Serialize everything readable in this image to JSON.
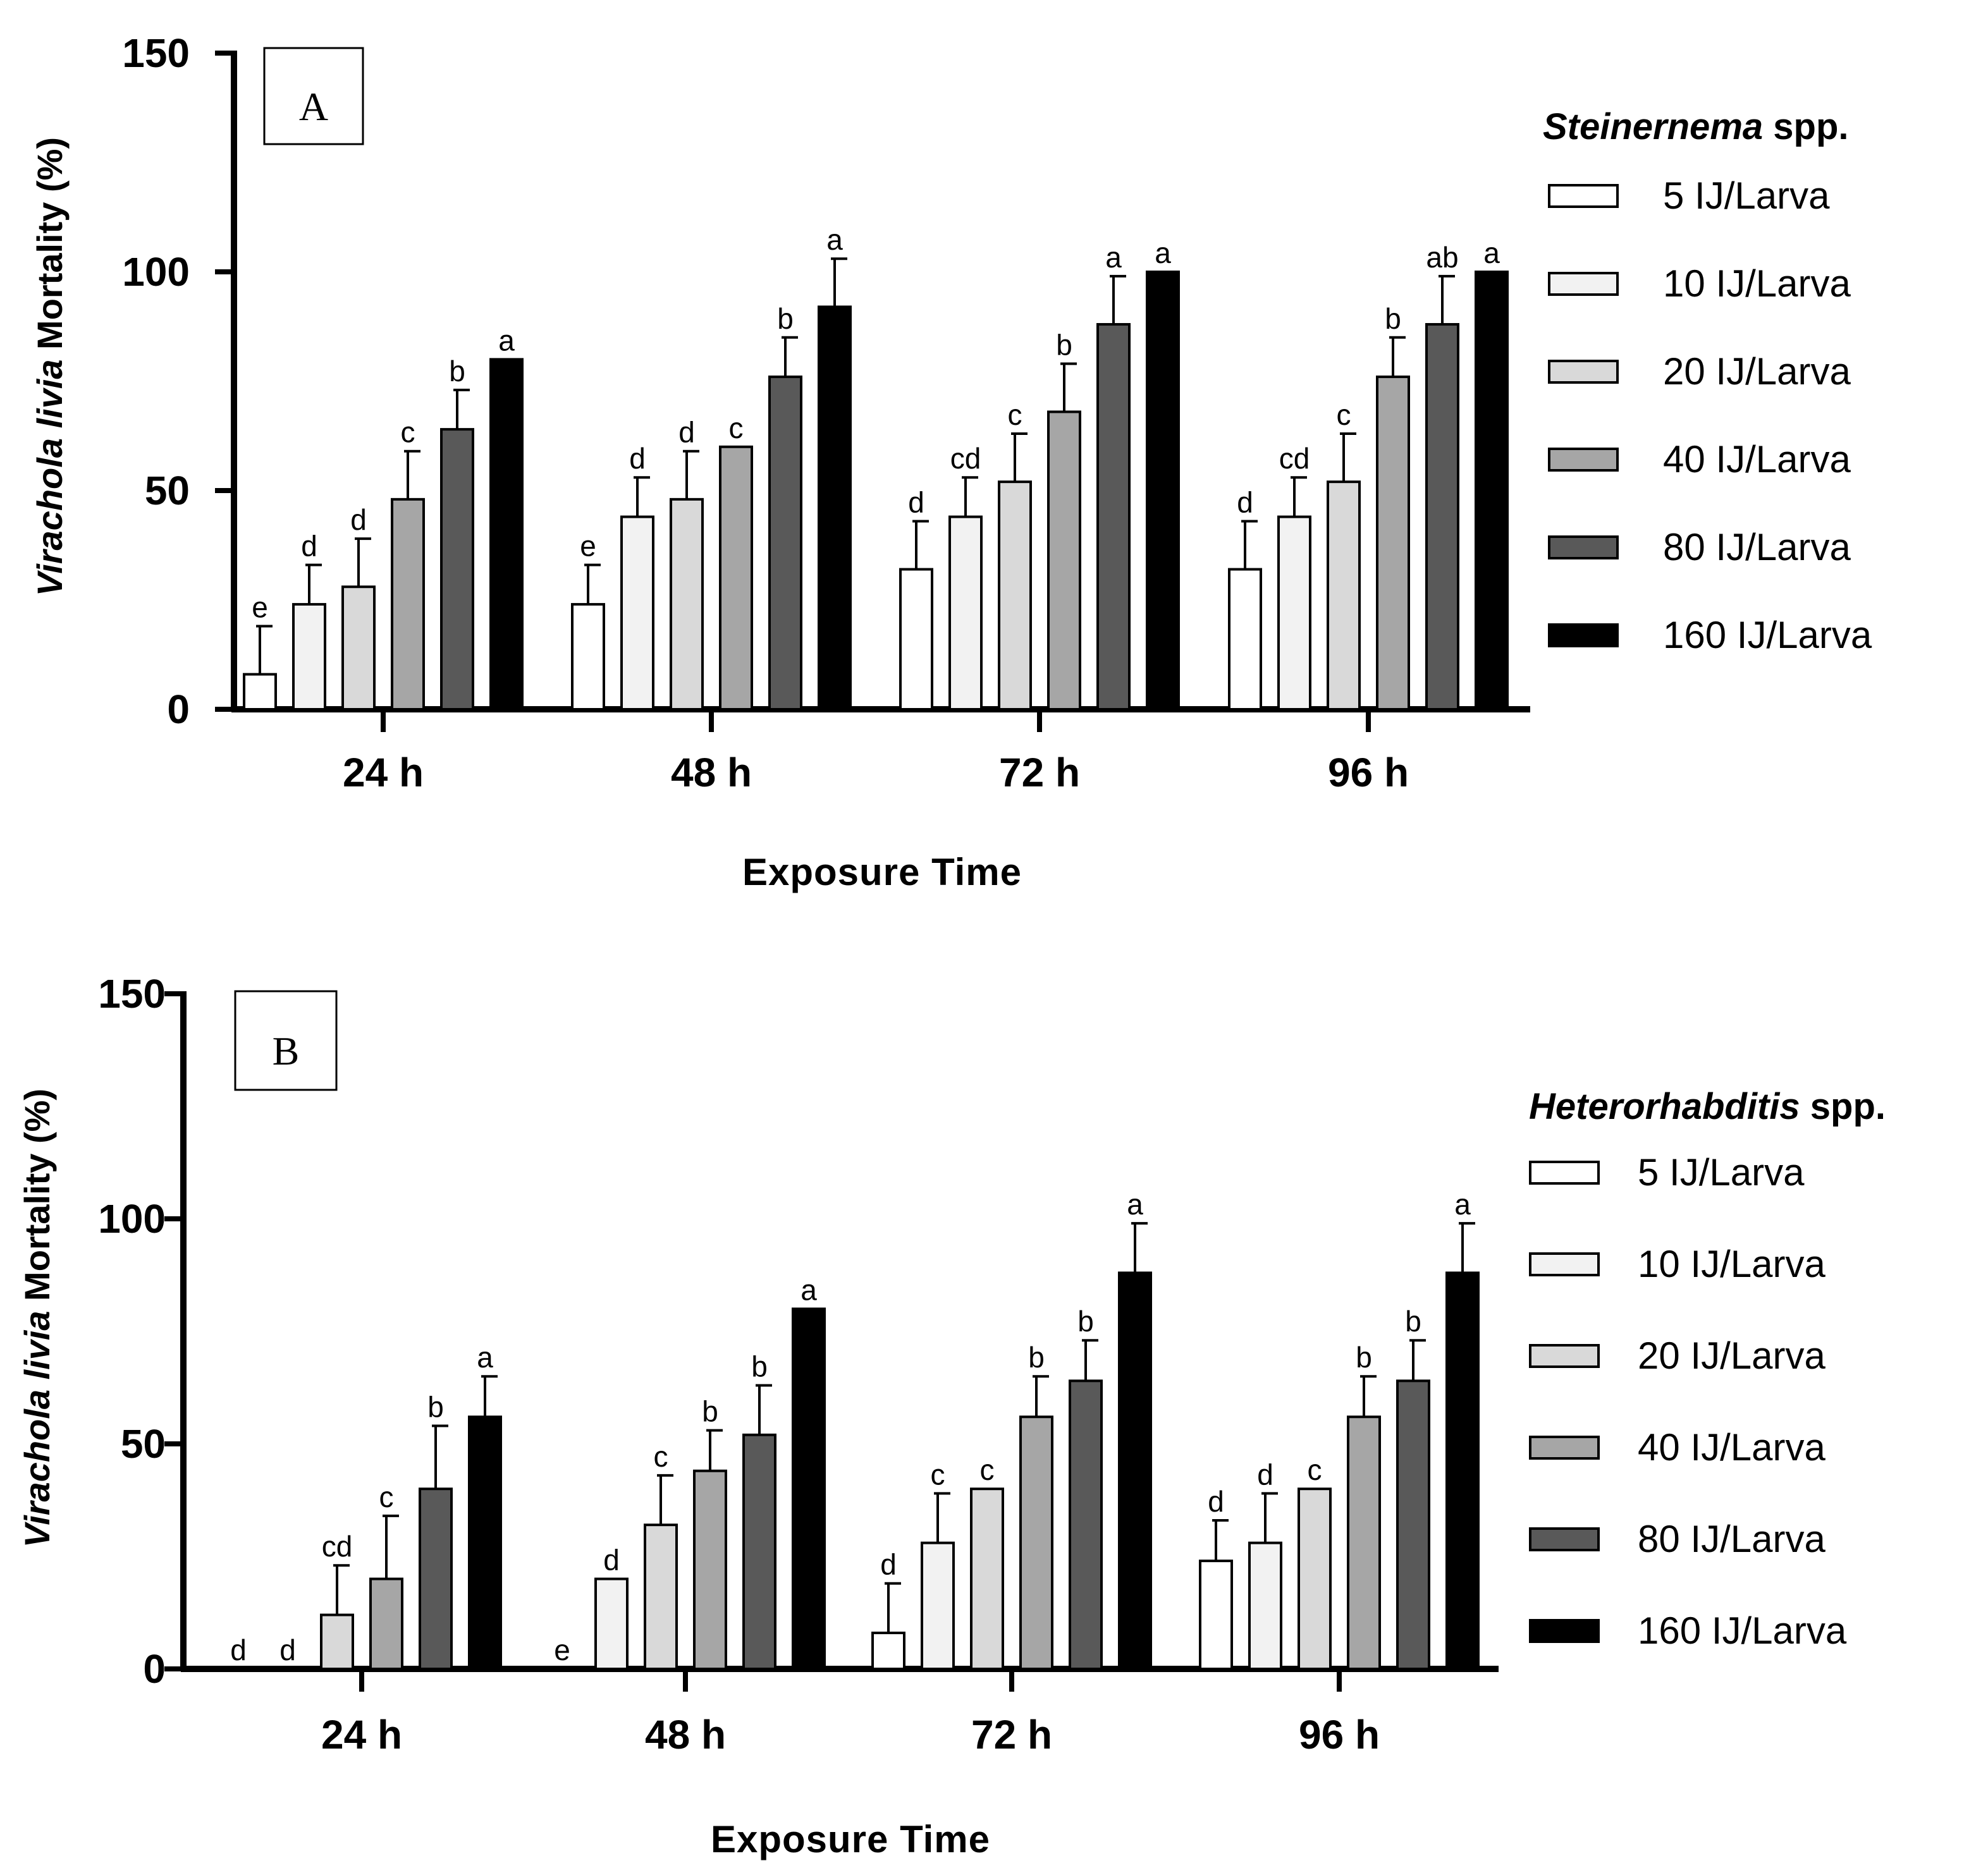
{
  "chart_data": [
    {
      "type": "bar",
      "panel_label": "A",
      "categories": [
        "24 h",
        "48 h",
        "72 h",
        "96 h"
      ],
      "xlabel": "Exposure Time",
      "ylabel_italic": "Virachola livia",
      "ylabel_rest": " Mortality (%)",
      "ylim": [
        0,
        150
      ],
      "yticks": [
        "0",
        "50",
        "100",
        "150"
      ],
      "legend_title_italic": "Steinernema",
      "legend_title_rest": " spp.",
      "series": [
        {
          "name": "5 IJ/Larva",
          "color": "#ffffff",
          "values": [
            8,
            24,
            32,
            32
          ],
          "errors": [
            11,
            9,
            11,
            11
          ],
          "letters": [
            "e",
            "e",
            "d",
            "d"
          ]
        },
        {
          "name": "10 IJ/Larva",
          "color": "#f2f2f2",
          "values": [
            24,
            44,
            44,
            44
          ],
          "errors": [
            9,
            9,
            9,
            9
          ],
          "letters": [
            "d",
            "d",
            "cd",
            "cd"
          ]
        },
        {
          "name": "20 IJ/Larva",
          "color": "#d9d9d9",
          "values": [
            28,
            48,
            52,
            52
          ],
          "errors": [
            11,
            11,
            11,
            11
          ],
          "letters": [
            "d",
            "d",
            "c",
            "c"
          ]
        },
        {
          "name": "40 IJ/Larva",
          "color": "#a6a6a6",
          "values": [
            48,
            60,
            68,
            76
          ],
          "errors": [
            11,
            0,
            11,
            9
          ],
          "letters": [
            "c",
            "c",
            "b",
            "b"
          ]
        },
        {
          "name": "80 IJ/Larva",
          "color": "#595959",
          "values": [
            64,
            76,
            88,
            88
          ],
          "errors": [
            9,
            9,
            11,
            11
          ],
          "letters": [
            "b",
            "b",
            "a",
            "ab"
          ]
        },
        {
          "name": "160 IJ/Larva",
          "color": "#000000",
          "values": [
            80,
            92,
            100,
            100
          ],
          "errors": [
            0,
            11,
            0,
            0
          ],
          "letters": [
            "a",
            "a",
            "a",
            "a"
          ]
        }
      ]
    },
    {
      "type": "bar",
      "panel_label": "B",
      "categories": [
        "24 h",
        "48 h",
        "72 h",
        "96 h"
      ],
      "xlabel": "Exposure Time",
      "ylabel_italic": "Virachola livia",
      "ylabel_rest": " Mortality (%)",
      "ylim": [
        0,
        150
      ],
      "yticks": [
        "0",
        "50",
        "100",
        "150"
      ],
      "legend_title_italic": "Heterorhabditis",
      "legend_title_rest": " spp.",
      "series": [
        {
          "name": "5 IJ/Larva",
          "color": "#ffffff",
          "values": [
            0,
            0,
            8,
            24
          ],
          "errors": [
            0,
            0,
            11,
            9
          ],
          "letters": [
            "d",
            "e",
            "d",
            "d"
          ]
        },
        {
          "name": "10 IJ/Larva",
          "color": "#f2f2f2",
          "values": [
            0,
            20,
            28,
            28
          ],
          "errors": [
            0,
            0,
            11,
            11
          ],
          "letters": [
            "d",
            "d",
            "c",
            "d"
          ]
        },
        {
          "name": "20 IJ/Larva",
          "color": "#d9d9d9",
          "values": [
            12,
            32,
            40,
            40
          ],
          "errors": [
            11,
            11,
            0,
            0
          ],
          "letters": [
            "cd",
            "c",
            "c",
            "c"
          ]
        },
        {
          "name": "40 IJ/Larva",
          "color": "#a6a6a6",
          "values": [
            20,
            44,
            56,
            56
          ],
          "errors": [
            14,
            9,
            9,
            9
          ],
          "letters": [
            "c",
            "b",
            "b",
            "b"
          ]
        },
        {
          "name": "80 IJ/Larva",
          "color": "#595959",
          "values": [
            40,
            52,
            64,
            64
          ],
          "errors": [
            14,
            11,
            9,
            9
          ],
          "letters": [
            "b",
            "b",
            "b",
            "b"
          ]
        },
        {
          "name": "160 IJ/Larva",
          "color": "#000000",
          "values": [
            56,
            80,
            88,
            88
          ],
          "errors": [
            9,
            0,
            11,
            11
          ],
          "letters": [
            "a",
            "a",
            "a",
            "a"
          ]
        }
      ]
    }
  ]
}
